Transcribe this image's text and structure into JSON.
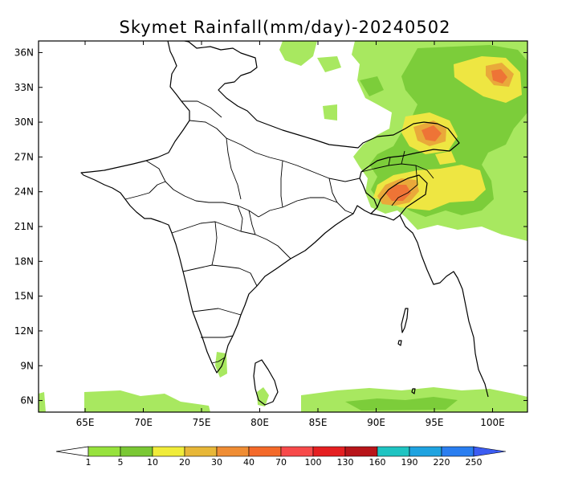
{
  "title": "Skymet Rainfall(mm/day)-20240502",
  "map": {
    "lon_range": [
      61,
      103
    ],
    "lat_range": [
      5,
      37
    ],
    "lon_ticks": [
      "65E",
      "70E",
      "75E",
      "80E",
      "85E",
      "90E",
      "95E",
      "100E"
    ],
    "lon_tick_values": [
      65,
      70,
      75,
      80,
      85,
      90,
      95,
      100
    ],
    "lat_ticks": [
      "6N",
      "9N",
      "12N",
      "15N",
      "18N",
      "21N",
      "24N",
      "27N",
      "30N",
      "33N",
      "36N"
    ],
    "lat_tick_values": [
      6,
      9,
      12,
      15,
      18,
      21,
      24,
      27,
      30,
      33,
      36
    ]
  },
  "colorbar": {
    "labels": [
      "1",
      "5",
      "10",
      "20",
      "30",
      "40",
      "70",
      "100",
      "130",
      "160",
      "190",
      "220",
      "250"
    ],
    "colors": [
      "#97e23d",
      "#7ac834",
      "#f0ec3a",
      "#e7b738",
      "#ef8d34",
      "#f46a2a",
      "#f74a4a",
      "#e51f21",
      "#b8151a",
      "#1fc4c2",
      "#1fa3e0",
      "#2a7ef0",
      "#3c5cf2"
    ]
  },
  "rain_fill": {
    "levels": [
      "1-5 mm",
      "5-10 mm",
      "10-20 mm",
      "20-30 mm",
      "30-40 mm"
    ],
    "colors": {
      "light": "#a8e860",
      "mid": "#7ccd3a",
      "yellow": "#eee642",
      "orange": "#e9a93a",
      "red": "#ee7436"
    }
  }
}
